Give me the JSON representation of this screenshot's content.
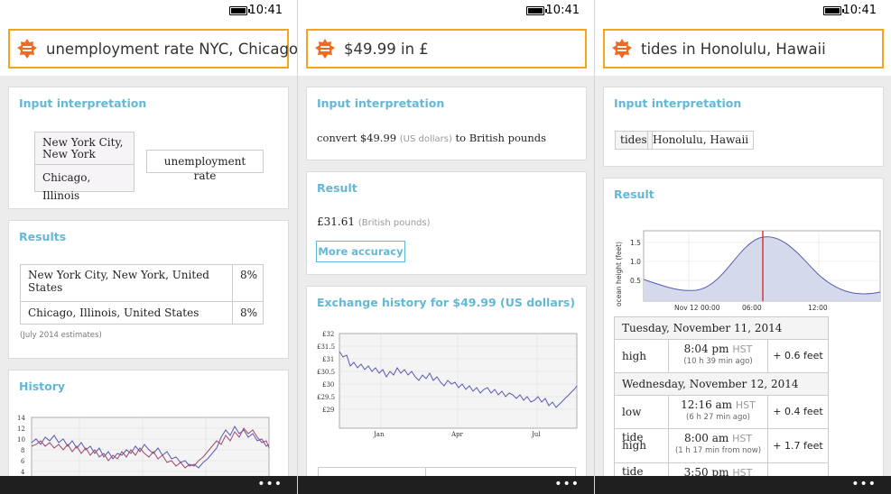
{
  "status": {
    "time": "10:41"
  },
  "phones": [
    {
      "query": "unemployment rate NYC, Chicago",
      "input_interpretation": {
        "title": "Input interpretation",
        "city1": "New York City, New York",
        "city2": "Chicago, Illinois",
        "property": "unemployment rate"
      },
      "results": {
        "title": "Results",
        "rows": [
          {
            "place": "New York City, New York, United States",
            "value": "8%"
          },
          {
            "place": "Chicago, Illinois, United States",
            "value": "8%"
          }
        ],
        "note": "(July 2014 estimates)"
      },
      "history": {
        "title": "History",
        "y_ticks": [
          "14",
          "12",
          "10",
          "8",
          "6",
          "4"
        ]
      }
    },
    {
      "query": "$49.99 in £",
      "input_interpretation": {
        "title": "Input interpretation",
        "pre": "convert $49.99",
        "unit1": "(US dollars)",
        "mid": "to British pounds"
      },
      "result": {
        "title": "Result",
        "value": "£31.61",
        "unit": "(British pounds)",
        "button": "More accuracy"
      },
      "exchange": {
        "title": "Exchange history for  $49.99  (US dollars)",
        "y_ticks": [
          "£32",
          "£31.5",
          "£31",
          "£30.5",
          "£30",
          "£29.5",
          "£29"
        ],
        "x_ticks": [
          "Jan",
          "Apr",
          "Jul"
        ]
      }
    },
    {
      "query": "tides in Honolulu, Hawaii",
      "input_interpretation": {
        "title": "Input interpretation",
        "tag1": "tides",
        "tag2": "Honolulu, Hawaii"
      },
      "result": {
        "title": "Result",
        "ylabel": "ocean height (feet)",
        "y_ticks": [
          "1.5",
          "1.0",
          "0.5"
        ],
        "x_ticks": [
          "Nov 12 00:00",
          "06:00",
          "12:00"
        ]
      },
      "tides": {
        "day1": "Tuesday, November 11, 2014",
        "day2": "Wednesday, November 12, 2014",
        "rows": [
          {
            "type": "high tide",
            "time": "8:04 pm",
            "tz": "HST",
            "rel": "(10 h 39 min ago)",
            "height": "+ 0.6 feet"
          },
          {
            "type": "low tide",
            "time": "12:16 am",
            "tz": "HST",
            "rel": "(6 h 27 min ago)",
            "height": "+ 0.4 feet"
          },
          {
            "type": "high tide",
            "time": "8:00 am",
            "tz": "HST",
            "rel": "(1 h 17 min from now)",
            "height": "+ 1.7 feet"
          },
          {
            "type": "",
            "time": "3:50 pm",
            "tz": "HST",
            "rel": "",
            "height": ""
          }
        ]
      }
    }
  ],
  "colors": {
    "accent": "#63b8d6",
    "search_border": "#f4a51c",
    "logo": "#f26a21"
  },
  "icons": {
    "logo": "wolfram-alpha-logo-icon",
    "more": "more-dots-icon",
    "battery": "battery-icon"
  }
}
